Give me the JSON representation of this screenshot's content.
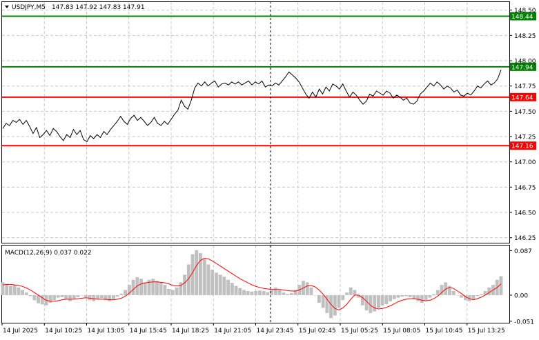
{
  "header": {
    "symbol_label": "USDJPY,M5",
    "ohlc_label": "147.83 147.92 147.83 147.91"
  },
  "macd": {
    "label": "MACD(12,26,9) 0.037 0.022"
  },
  "colors": {
    "background": "#ffffff",
    "grid": "#c8c8c8",
    "price_line": "#000000",
    "green_level": "#008000",
    "red_level": "#ff0000",
    "histogram": "#c0c0c0",
    "signal": "#ff0000"
  },
  "chart_data": [
    {
      "type": "line",
      "title": "USDJPY,M5",
      "ylim": [
        146.2,
        148.58
      ],
      "y_ticks": [
        "148.50",
        "148.25",
        "148.00",
        "147.75",
        "147.50",
        "147.25",
        "147.00",
        "146.75",
        "146.50",
        "146.25"
      ],
      "x_tick_labels": [
        "14 Jul 2025",
        "14 Jul 10:25",
        "14 Jul 13:05",
        "14 Jul 15:45",
        "14 Jul 18:25",
        "14 Jul 21:05",
        "14 Jul 23:45",
        "15 Jul 02:45",
        "15 Jul 05:25",
        "15 Jul 08:05",
        "15 Jul 10:45",
        "15 Jul 13:25"
      ],
      "grid": true,
      "levels": [
        {
          "value": 148.44,
          "label": "148.44",
          "color": "green"
        },
        {
          "value": 147.94,
          "label": "147.94",
          "color": "green"
        },
        {
          "value": 147.64,
          "label": "147.64",
          "color": "red"
        },
        {
          "value": 147.16,
          "label": "147.16",
          "color": "red"
        }
      ],
      "series": [
        {
          "values": [
            147.33,
            147.38,
            147.36,
            147.41,
            147.39,
            147.42,
            147.37,
            147.41,
            147.35,
            147.28,
            147.34,
            147.24,
            147.27,
            147.31,
            147.26,
            147.33,
            147.3,
            147.25,
            147.21,
            147.27,
            147.24,
            147.32,
            147.27,
            147.31,
            147.22,
            147.2,
            147.26,
            147.23,
            147.27,
            147.24,
            147.3,
            147.27,
            147.32,
            147.36,
            147.4,
            147.45,
            147.4,
            147.37,
            147.43,
            147.46,
            147.41,
            147.44,
            147.4,
            147.36,
            147.39,
            147.44,
            147.38,
            147.36,
            147.4,
            147.37,
            147.42,
            147.47,
            147.51,
            147.61,
            147.55,
            147.52,
            147.61,
            147.73,
            147.78,
            147.75,
            147.79,
            147.75,
            147.78,
            147.8,
            147.74,
            147.77,
            147.78,
            147.76,
            147.79,
            147.77,
            147.79,
            147.76,
            147.78,
            147.8,
            147.76,
            147.79,
            147.77,
            147.8,
            147.74,
            147.76,
            147.75,
            147.78,
            147.76,
            147.8,
            147.84,
            147.89,
            147.86,
            147.83,
            147.79,
            147.73,
            147.67,
            147.63,
            147.69,
            147.64,
            147.72,
            147.67,
            147.74,
            147.7,
            147.77,
            147.75,
            147.72,
            147.77,
            147.7,
            147.64,
            147.69,
            147.66,
            147.61,
            147.57,
            147.6,
            147.67,
            147.65,
            147.7,
            147.68,
            147.66,
            147.7,
            147.68,
            147.63,
            147.66,
            147.64,
            147.61,
            147.63,
            147.58,
            147.57,
            147.6,
            147.67,
            147.7,
            147.74,
            147.78,
            147.75,
            147.79,
            147.76,
            147.72,
            147.75,
            147.73,
            147.69,
            147.71,
            147.66,
            147.65,
            147.68,
            147.66,
            147.7,
            147.75,
            147.73,
            147.77,
            147.8,
            147.76,
            147.78,
            147.82,
            147.91
          ]
        }
      ]
    },
    {
      "type": "bar",
      "title": "MACD(12,26,9) 0.037 0.022",
      "ylim": [
        -0.054,
        0.097
      ],
      "y_ticks": [
        "0.087",
        "0.00",
        "-0.051"
      ],
      "series": [
        {
          "name": "MACD",
          "values": [
            0.025,
            0.022,
            0.018,
            0.02,
            0.015,
            0.01,
            0.005,
            -0.002,
            -0.01,
            -0.016,
            -0.018,
            -0.02,
            -0.015,
            -0.01,
            -0.005,
            -0.004,
            -0.008,
            -0.012,
            -0.008,
            -0.004,
            0.0,
            -0.004,
            -0.01,
            -0.012,
            -0.008,
            -0.006,
            -0.01,
            -0.012,
            -0.008,
            -0.003,
            0.003,
            0.01,
            0.02,
            0.03,
            0.035,
            0.032,
            0.025,
            0.03,
            0.032,
            0.028,
            0.025,
            0.02,
            0.012,
            0.01,
            0.015,
            0.025,
            0.04,
            0.06,
            0.08,
            0.088,
            0.082,
            0.07,
            0.06,
            0.05,
            0.044,
            0.04,
            0.036,
            0.03,
            0.024,
            0.018,
            0.014,
            0.01,
            0.008,
            0.007,
            0.008,
            0.009,
            0.008,
            0.006,
            0.01,
            0.015,
            0.01,
            0.005,
            0.002,
            0.004,
            0.01,
            0.02,
            0.028,
            0.025,
            0.015,
            0.0,
            -0.015,
            -0.025,
            -0.035,
            -0.045,
            -0.04,
            -0.025,
            -0.01,
            0.005,
            0.015,
            0.01,
            -0.005,
            -0.02,
            -0.03,
            -0.035,
            -0.032,
            -0.025,
            -0.02,
            -0.018,
            -0.012,
            -0.008,
            -0.005,
            -0.003,
            -0.002,
            -0.004,
            -0.008,
            -0.012,
            -0.015,
            -0.01,
            -0.005,
            0.002,
            0.01,
            0.02,
            0.025,
            0.018,
            0.008,
            0.0,
            -0.005,
            -0.01,
            -0.012,
            -0.008,
            -0.002,
            0.002,
            0.008,
            0.015,
            0.02,
            0.03,
            0.037
          ]
        },
        {
          "name": "Signal",
          "values": [
            0.02,
            0.021,
            0.021,
            0.02,
            0.019,
            0.017,
            0.014,
            0.01,
            0.005,
            0.0,
            -0.005,
            -0.01,
            -0.012,
            -0.012,
            -0.011,
            -0.009,
            -0.008,
            -0.008,
            -0.008,
            -0.007,
            -0.006,
            -0.005,
            -0.006,
            -0.007,
            -0.008,
            -0.008,
            -0.008,
            -0.009,
            -0.009,
            -0.008,
            -0.006,
            -0.002,
            0.004,
            0.011,
            0.018,
            0.022,
            0.024,
            0.025,
            0.026,
            0.026,
            0.025,
            0.024,
            0.022,
            0.019,
            0.018,
            0.019,
            0.024,
            0.032,
            0.044,
            0.058,
            0.068,
            0.072,
            0.071,
            0.067,
            0.062,
            0.057,
            0.052,
            0.047,
            0.042,
            0.037,
            0.032,
            0.028,
            0.024,
            0.02,
            0.017,
            0.015,
            0.013,
            0.012,
            0.011,
            0.011,
            0.011,
            0.01,
            0.009,
            0.008,
            0.008,
            0.01,
            0.014,
            0.018,
            0.019,
            0.016,
            0.01,
            0.002,
            -0.008,
            -0.018,
            -0.026,
            -0.029,
            -0.025,
            -0.018,
            -0.008,
            0.0,
            0.0,
            -0.005,
            -0.012,
            -0.02,
            -0.025,
            -0.027,
            -0.026,
            -0.024,
            -0.021,
            -0.017,
            -0.013,
            -0.01,
            -0.008,
            -0.007,
            -0.007,
            -0.008,
            -0.01,
            -0.011,
            -0.01,
            -0.007,
            -0.002,
            0.005,
            0.012,
            0.015,
            0.013,
            0.008,
            0.003,
            -0.003,
            -0.007,
            -0.009,
            -0.007,
            -0.004,
            0.0,
            0.005,
            0.01,
            0.015,
            0.022
          ]
        }
      ]
    }
  ]
}
